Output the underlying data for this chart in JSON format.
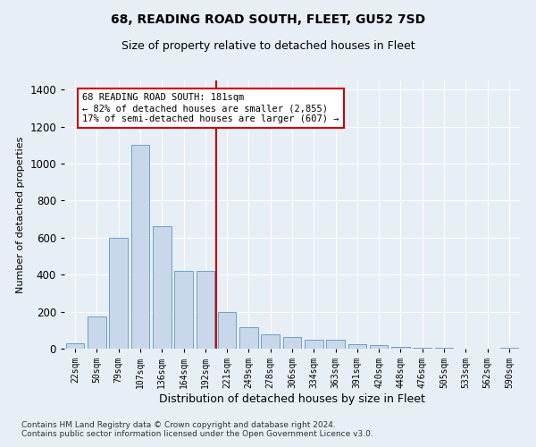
{
  "title": "68, READING ROAD SOUTH, FLEET, GU52 7SD",
  "subtitle": "Size of property relative to detached houses in Fleet",
  "xlabel": "Distribution of detached houses by size in Fleet",
  "ylabel": "Number of detached properties",
  "categories": [
    "22sqm",
    "50sqm",
    "79sqm",
    "107sqm",
    "136sqm",
    "164sqm",
    "192sqm",
    "221sqm",
    "249sqm",
    "278sqm",
    "306sqm",
    "334sqm",
    "363sqm",
    "391sqm",
    "420sqm",
    "448sqm",
    "476sqm",
    "505sqm",
    "533sqm",
    "562sqm",
    "590sqm"
  ],
  "values": [
    30,
    175,
    600,
    1100,
    660,
    420,
    420,
    200,
    115,
    75,
    65,
    50,
    50,
    25,
    20,
    10,
    5,
    5,
    2,
    2,
    5
  ],
  "bar_color": "#c8d8ea",
  "bar_edge_color": "#6aa0c8",
  "vline_color": "#cc0000",
  "vline_position": 6.5,
  "annotation_text": "68 READING ROAD SOUTH: 181sqm\n← 82% of detached houses are smaller (2,855)\n17% of semi-detached houses are larger (607) →",
  "annotation_box_color": "#cc0000",
  "ylim": [
    0,
    1450
  ],
  "yticks": [
    0,
    200,
    400,
    600,
    800,
    1000,
    1200,
    1400
  ],
  "footnote": "Contains HM Land Registry data © Crown copyright and database right 2024.\nContains public sector information licensed under the Open Government Licence v3.0.",
  "background_color": "#e8eef5",
  "plot_background_color": "#e8eef5",
  "title_fontsize": 10,
  "subtitle_fontsize": 9,
  "ylabel_fontsize": 8,
  "xlabel_fontsize": 9
}
